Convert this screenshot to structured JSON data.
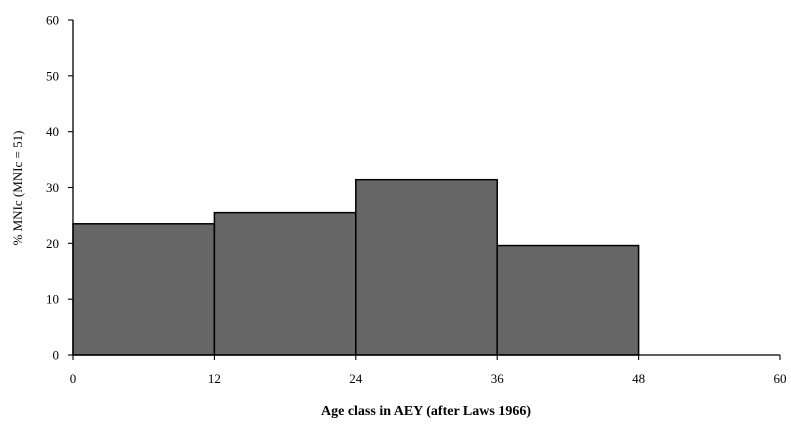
{
  "chart_data": {
    "type": "bar",
    "xlabel": "Age class in AEY (after Laws 1966)",
    "ylabel": "% MNIc (MNIc = 51)",
    "bins": [
      {
        "from": 0,
        "to": 12,
        "value": 23.5
      },
      {
        "from": 12,
        "to": 24,
        "value": 25.5
      },
      {
        "from": 24,
        "to": 36,
        "value": 31.4
      },
      {
        "from": 36,
        "to": 48,
        "value": 19.6
      }
    ],
    "xlim": [
      0,
      60
    ],
    "ylim": [
      0,
      60
    ],
    "x_ticks": [
      "0",
      "12",
      "24",
      "36",
      "48",
      "60"
    ],
    "y_ticks": [
      "0",
      "10",
      "20",
      "30",
      "40",
      "50",
      "60"
    ],
    "grid": false,
    "legend": "none"
  }
}
